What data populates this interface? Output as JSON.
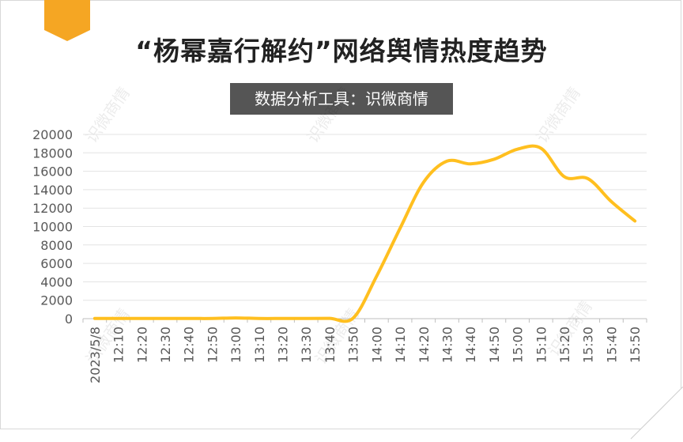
{
  "header": {
    "title": "“杨幂嘉行解约”网络舆情热度趋势",
    "subtitle": "数据分析工具：识微商情",
    "watermark": "识微商情"
  },
  "colors": {
    "line": "#FFBF1F",
    "accent_tab": "#F5A623",
    "subtitle_bg": "#555555",
    "grid": "#e3e3e3"
  },
  "chart_data": {
    "type": "line",
    "title": "“杨幂嘉行解约”网络舆情热度趋势",
    "xlabel": "",
    "ylabel": "",
    "ylim": [
      0,
      20000
    ],
    "yticks": [
      0,
      2000,
      4000,
      6000,
      8000,
      10000,
      12000,
      14000,
      16000,
      18000,
      20000
    ],
    "grid": true,
    "categories": [
      "2023/5/8",
      "12:10",
      "12:20",
      "12:30",
      "12:40",
      "12:50",
      "13:00",
      "13:10",
      "13:20",
      "13:30",
      "13:40",
      "13:50",
      "14:00",
      "14:10",
      "14:20",
      "14:30",
      "14:40",
      "14:50",
      "15:00",
      "15:10",
      "15:20",
      "15:30",
      "15:40",
      "15:50"
    ],
    "series": [
      {
        "values": [
          20,
          20,
          20,
          20,
          20,
          20,
          80,
          20,
          20,
          20,
          30,
          50,
          4600,
          9800,
          14800,
          17100,
          16800,
          17300,
          18400,
          18500,
          15400,
          15200,
          12700,
          10600
        ]
      }
    ]
  }
}
